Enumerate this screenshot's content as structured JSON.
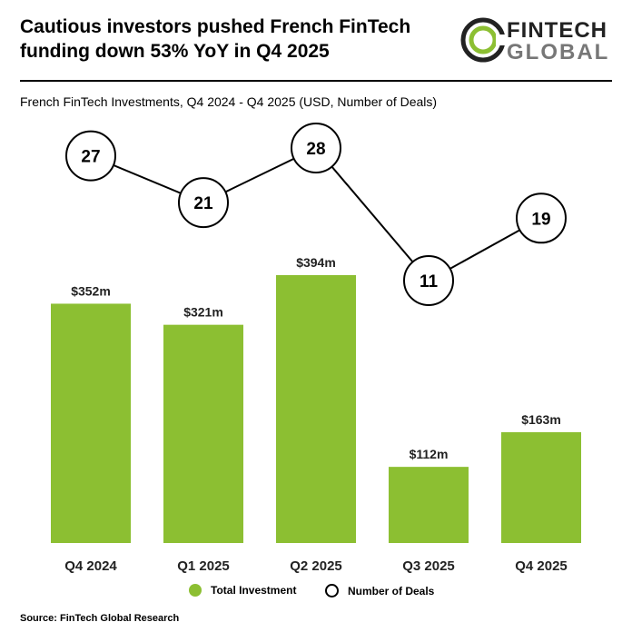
{
  "header": {
    "title": "Cautious investors pushed French FinTech funding down 53% YoY in Q4 2025",
    "logo_line1": "FINTECH",
    "logo_line2": "GLOBAL"
  },
  "colors": {
    "bar": "#8cbf32",
    "line": "#000000",
    "bubble_fill": "#ffffff"
  },
  "chart_data": {
    "type": "bar",
    "title": "French FinTech Investments, Q4 2024 - Q4 2025 (USD, Number of Deals)",
    "categories": [
      "Q4 2024",
      "Q1 2025",
      "Q2 2025",
      "Q3 2025",
      "Q4 2025"
    ],
    "series": [
      {
        "name": "Total Investment",
        "type": "bar",
        "unit": "USD m",
        "values": [
          352,
          321,
          394,
          112,
          163
        ],
        "labels": [
          "$352m",
          "$321m",
          "$394m",
          "$112m",
          "$163m"
        ]
      },
      {
        "name": "Number of Deals",
        "type": "line",
        "values": [
          27,
          21,
          28,
          11,
          19
        ]
      }
    ],
    "legend_position": "bottom",
    "grid": false
  },
  "legend": {
    "investment_label": "Total Investment",
    "deals_label": "Number of Deals"
  },
  "footer": {
    "source": "Source: FinTech Global Research"
  }
}
